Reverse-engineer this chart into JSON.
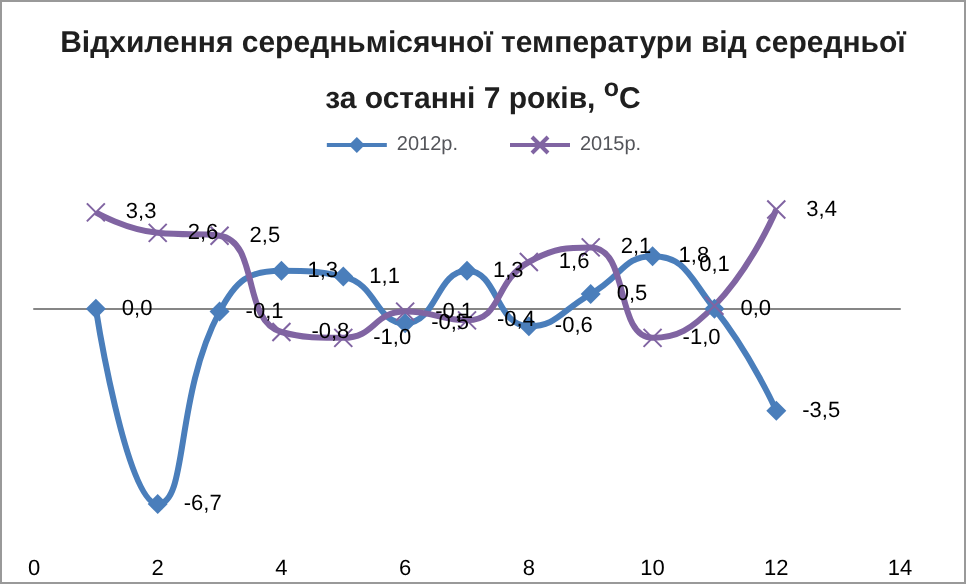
{
  "chart_data": {
    "type": "line",
    "title": "Відхилення середньмісячної температури  від середньої за останні 7 років, $^{o}$C",
    "x": [
      1,
      2,
      3,
      4,
      5,
      6,
      7,
      8,
      9,
      10,
      11,
      12
    ],
    "series": [
      {
        "name": "2012р.",
        "color": "#4a7ebb",
        "marker": "diamond",
        "values": [
          0.0,
          -6.7,
          -0.1,
          1.3,
          1.1,
          -0.5,
          1.3,
          -0.6,
          0.5,
          1.8,
          0.0,
          -3.5
        ],
        "value_labels": [
          "0,0",
          "-6,7",
          "-0,1",
          "1,3",
          "1,1",
          "-0,5",
          "1,3",
          "-0,6",
          "0,5",
          "1,8",
          "0,0",
          "-3,5"
        ]
      },
      {
        "name": "2015р.",
        "color": "#8064a2",
        "marker": "cross",
        "values": [
          3.3,
          2.6,
          2.5,
          -0.8,
          -1.0,
          -0.1,
          -0.4,
          1.6,
          2.1,
          -1.0,
          0.1,
          3.4
        ],
        "value_labels": [
          "3,3",
          "2,6",
          "2,5",
          "-0,8",
          "-1,0",
          "-0,1",
          "-0,4",
          "1,6",
          "2,1",
          "-1,0",
          "0,1",
          "3,4"
        ]
      }
    ],
    "xlim": [
      0,
      14
    ],
    "xticks": [
      0,
      2,
      4,
      6,
      8,
      10,
      12,
      14
    ],
    "tick_labels": "x",
    "legend": "top",
    "grid": false
  }
}
